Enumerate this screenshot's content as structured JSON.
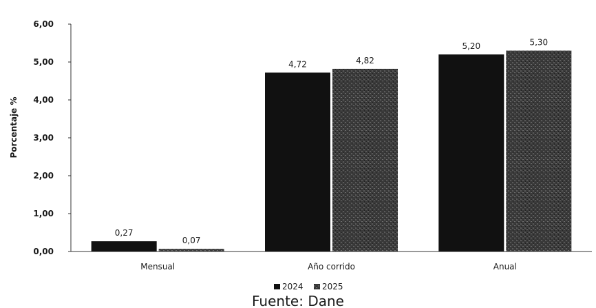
{
  "chart_data": {
    "type": "bar",
    "categories": [
      "Mensual",
      "Año corrido",
      "Anual"
    ],
    "series": [
      {
        "name": "2024",
        "values": [
          0.27,
          4.72,
          5.2
        ],
        "labels": [
          "0,27",
          "4,72",
          "5,20"
        ],
        "color": "#111111"
      },
      {
        "name": "2025",
        "values": [
          0.07,
          4.82,
          5.3
        ],
        "labels": [
          "0,07",
          "4,82",
          "5,30"
        ],
        "color": "#3a3a3a"
      }
    ],
    "ylabel": "Porcentaje %",
    "ylim": [
      0,
      6
    ],
    "yticks": [
      "0,00",
      "1,00",
      "2,00",
      "3,00",
      "4,00",
      "5,00",
      "6,00"
    ],
    "grid": false,
    "legend_position": "bottom",
    "source": "Fuente: Dane"
  }
}
